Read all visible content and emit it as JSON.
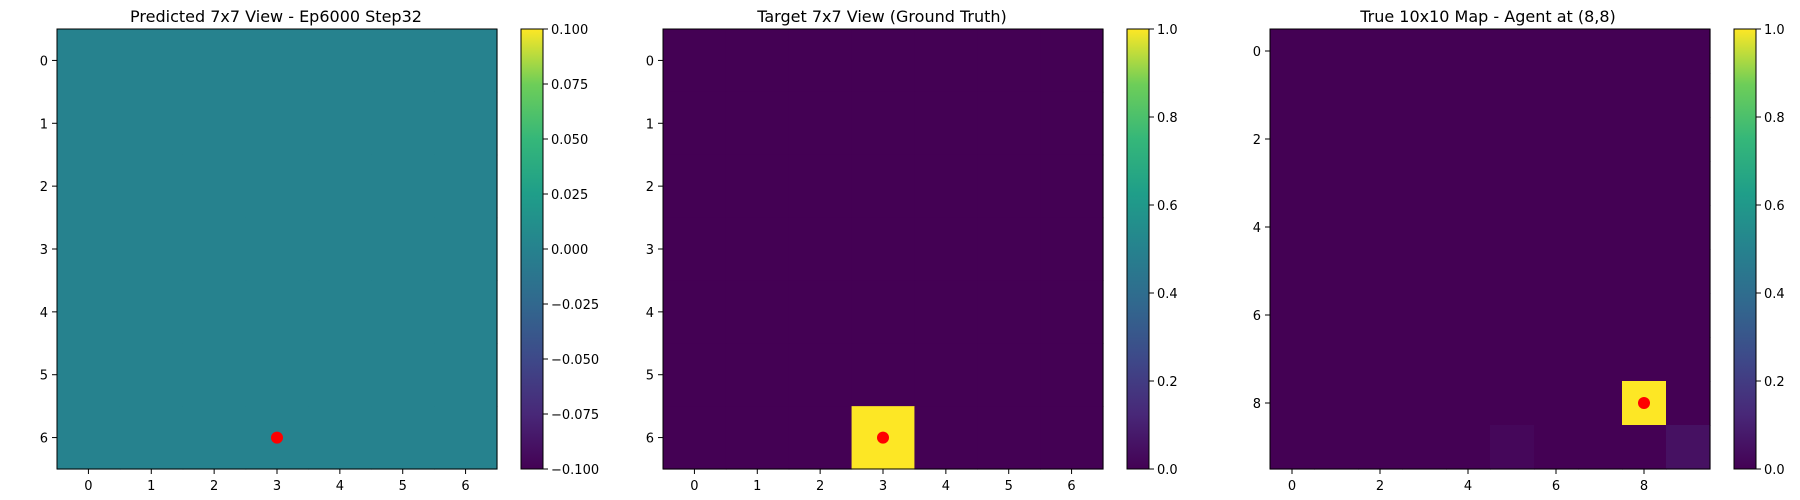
{
  "chart_data": [
    {
      "type": "heatmap",
      "title": "Predicted 7x7 View - Ep6000 Step32",
      "xlabel": "",
      "ylabel": "",
      "grid": false,
      "rows": 7,
      "cols": 7,
      "xticks": [
        0,
        1,
        2,
        3,
        4,
        5,
        6
      ],
      "yticks": [
        0,
        1,
        2,
        3,
        4,
        5,
        6
      ],
      "values": [
        [
          0,
          0,
          0,
          0,
          0,
          0,
          0
        ],
        [
          0,
          0,
          0,
          0,
          0,
          0,
          0
        ],
        [
          0,
          0,
          0,
          0,
          0,
          0,
          0
        ],
        [
          0,
          0,
          0,
          0,
          0,
          0,
          0
        ],
        [
          0,
          0,
          0,
          0,
          0,
          0,
          0
        ],
        [
          0,
          0,
          0,
          0,
          0,
          0,
          0
        ],
        [
          0,
          0,
          0,
          0,
          0,
          0,
          0
        ]
      ],
      "colormap": "viridis",
      "vmin": -0.1,
      "vmax": 0.1,
      "colorbar_ticks": [
        -0.1,
        -0.075,
        -0.05,
        -0.025,
        0.0,
        0.025,
        0.05,
        0.075,
        0.1
      ],
      "colorbar_tick_labels": [
        "−0.100",
        "−0.075",
        "−0.050",
        "−0.025",
        "0.000",
        "0.025",
        "0.050",
        "0.075",
        "0.100"
      ],
      "marker": {
        "row": 6,
        "col": 3,
        "color": "#ff0000"
      }
    },
    {
      "type": "heatmap",
      "title": "Target 7x7 View (Ground Truth)",
      "xlabel": "",
      "ylabel": "",
      "grid": false,
      "rows": 7,
      "cols": 7,
      "xticks": [
        0,
        1,
        2,
        3,
        4,
        5,
        6
      ],
      "yticks": [
        0,
        1,
        2,
        3,
        4,
        5,
        6
      ],
      "values": [
        [
          0,
          0,
          0,
          0,
          0,
          0,
          0
        ],
        [
          0,
          0,
          0,
          0,
          0,
          0,
          0
        ],
        [
          0,
          0,
          0,
          0,
          0,
          0,
          0
        ],
        [
          0,
          0,
          0,
          0,
          0,
          0,
          0
        ],
        [
          0,
          0,
          0,
          0,
          0,
          0,
          0
        ],
        [
          0,
          0,
          0,
          0,
          0,
          0,
          0
        ],
        [
          0,
          0,
          0,
          1,
          0,
          0,
          0
        ]
      ],
      "colormap": "viridis",
      "vmin": 0,
      "vmax": 1,
      "colorbar_ticks": [
        0.0,
        0.2,
        0.4,
        0.6,
        0.8,
        1.0
      ],
      "colorbar_tick_labels": [
        "0.0",
        "0.2",
        "0.4",
        "0.6",
        "0.8",
        "1.0"
      ],
      "marker": {
        "row": 6,
        "col": 3,
        "color": "#ff0000"
      }
    },
    {
      "type": "heatmap",
      "title": "True 10x10 Map - Agent at (8,8)",
      "xlabel": "",
      "ylabel": "",
      "grid": false,
      "rows": 10,
      "cols": 10,
      "xticks": [
        0,
        2,
        4,
        6,
        8
      ],
      "yticks": [
        0,
        2,
        4,
        6,
        8
      ],
      "values": [
        [
          0,
          0,
          0,
          0,
          0,
          0,
          0,
          0,
          0,
          0
        ],
        [
          0,
          0,
          0,
          0,
          0,
          0,
          0,
          0,
          0,
          0
        ],
        [
          0,
          0,
          0,
          0,
          0,
          0,
          0,
          0,
          0,
          0
        ],
        [
          0,
          0,
          0,
          0,
          0,
          0,
          0,
          0,
          0,
          0
        ],
        [
          0,
          0,
          0,
          0,
          0,
          0,
          0,
          0,
          0,
          0
        ],
        [
          0,
          0,
          0,
          0,
          0,
          0,
          0,
          0,
          0,
          0
        ],
        [
          0,
          0,
          0,
          0,
          0,
          0,
          0,
          0,
          0,
          0
        ],
        [
          0,
          0,
          0,
          0,
          0,
          0,
          0,
          0,
          0,
          0
        ],
        [
          0,
          0,
          0,
          0,
          0,
          0,
          0,
          0,
          1,
          0
        ],
        [
          0,
          0,
          0,
          0,
          0,
          0.02,
          0,
          0,
          0,
          0.05
        ]
      ],
      "colormap": "viridis",
      "vmin": 0,
      "vmax": 1,
      "colorbar_ticks": [
        0.0,
        0.2,
        0.4,
        0.6,
        0.8,
        1.0
      ],
      "colorbar_tick_labels": [
        "0.0",
        "0.2",
        "0.4",
        "0.6",
        "0.8",
        "1.0"
      ],
      "marker": {
        "row": 8,
        "col": 8,
        "color": "#ff0000"
      }
    }
  ]
}
